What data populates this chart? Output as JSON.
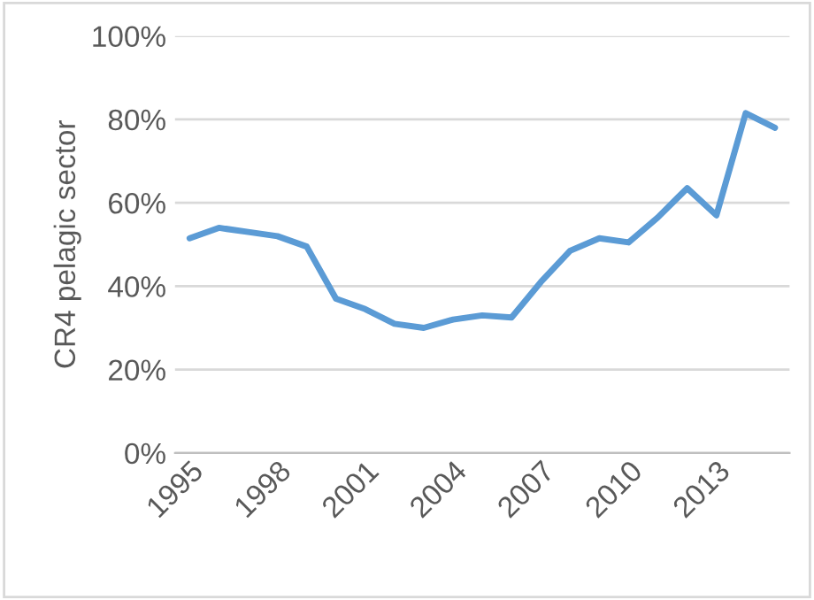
{
  "chart_data": {
    "type": "line",
    "ylabel": "CR4 pelagic sector",
    "categories": [
      "1995",
      null,
      null,
      "1998",
      null,
      null,
      "2001",
      null,
      null,
      "2004",
      null,
      null,
      "2007",
      null,
      null,
      "2010",
      null,
      null,
      "2013",
      null,
      null
    ],
    "series": [
      {
        "color": "#5b9bd5",
        "values": [
          51.5,
          54,
          53,
          52,
          49.5,
          37,
          34.5,
          31,
          30,
          32,
          33,
          32.5,
          41,
          48.5,
          51.5,
          50.5,
          56.5,
          63.5,
          57,
          81.5,
          78
        ]
      }
    ],
    "ylim": [
      0,
      100
    ],
    "yticks": [
      {
        "value": 0,
        "label": "0%"
      },
      {
        "value": 20,
        "label": "20%"
      },
      {
        "value": 40,
        "label": "40%"
      },
      {
        "value": 60,
        "label": "60%"
      },
      {
        "value": 80,
        "label": "80%"
      },
      {
        "value": 100,
        "label": "100%"
      }
    ],
    "grid": "y",
    "marker": "none",
    "line_style": "solid"
  }
}
